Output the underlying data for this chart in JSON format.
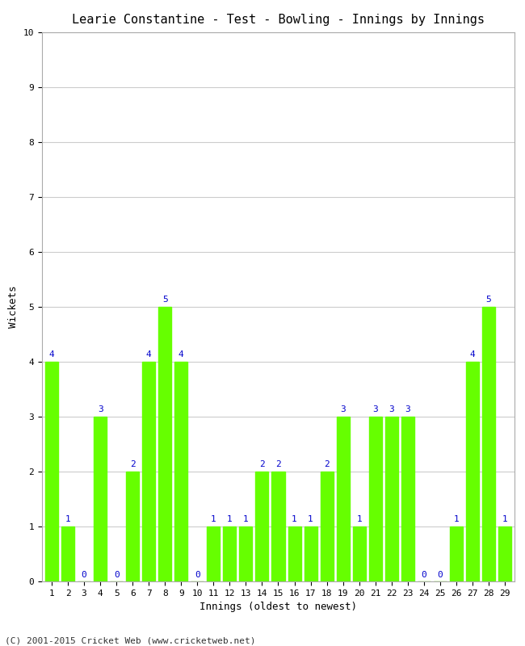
{
  "title": "Learie Constantine - Test - Bowling - Innings by Innings",
  "xlabel": "Innings (oldest to newest)",
  "ylabel": "Wickets",
  "categories": [
    1,
    2,
    3,
    4,
    5,
    6,
    7,
    8,
    9,
    10,
    11,
    12,
    13,
    14,
    15,
    16,
    17,
    18,
    19,
    20,
    21,
    22,
    23,
    24,
    25,
    26,
    27,
    28,
    29
  ],
  "values": [
    4,
    1,
    0,
    3,
    0,
    2,
    4,
    5,
    4,
    0,
    1,
    1,
    1,
    2,
    2,
    1,
    1,
    2,
    3,
    1,
    3,
    3,
    3,
    0,
    0,
    1,
    4,
    5,
    1
  ],
  "bar_color": "#66ff00",
  "bar_edge_color": "#66ff00",
  "label_color": "#0000cc",
  "background_color": "#ffffff",
  "ylim": [
    0,
    10
  ],
  "yticks": [
    0,
    1,
    2,
    3,
    4,
    5,
    6,
    7,
    8,
    9,
    10
  ],
  "grid_color": "#cccccc",
  "title_fontsize": 11,
  "axis_label_fontsize": 9,
  "tick_fontsize": 8,
  "label_fontsize": 8,
  "footer": "(C) 2001-2015 Cricket Web (www.cricketweb.net)"
}
